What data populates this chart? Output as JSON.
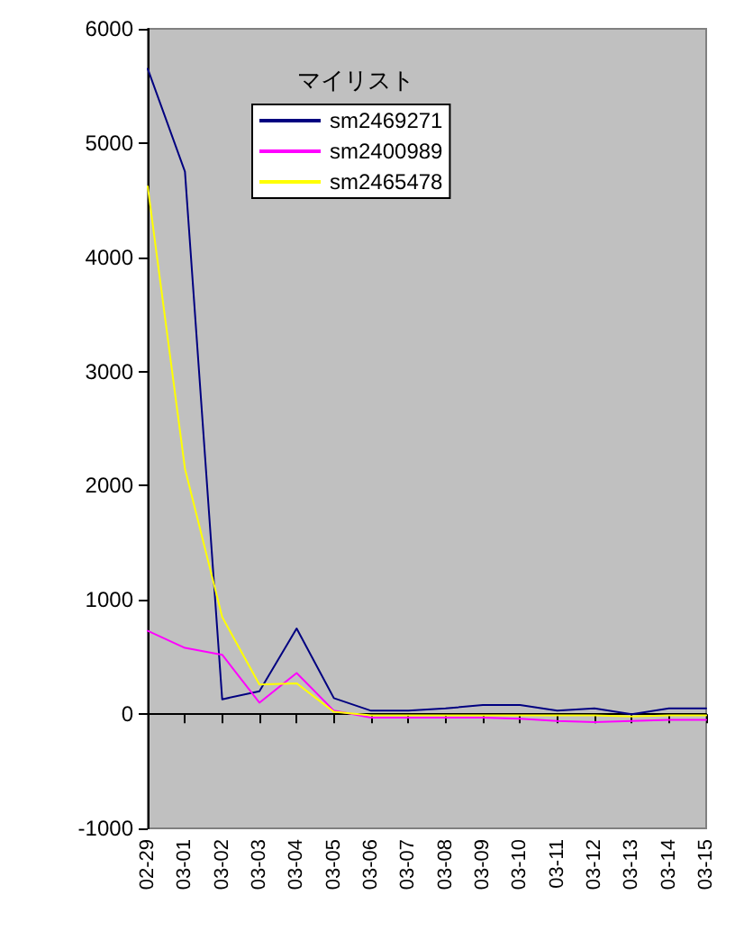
{
  "chart_data": {
    "type": "line",
    "legend_title": "マイリスト",
    "categories": [
      "02-29",
      "03-01",
      "03-02",
      "03-03",
      "03-04",
      "03-05",
      "03-06",
      "03-07",
      "03-08",
      "03-09",
      "03-10",
      "03-11",
      "03-12",
      "03-13",
      "03-14",
      "03-15"
    ],
    "series": [
      {
        "name": "sm2469271",
        "color": "#000080",
        "values": [
          5650,
          4750,
          130,
          200,
          750,
          140,
          30,
          30,
          50,
          80,
          80,
          30,
          50,
          0,
          50,
          50
        ]
      },
      {
        "name": "sm2400989",
        "color": "#ff00ff",
        "values": [
          730,
          580,
          520,
          100,
          360,
          30,
          -30,
          -30,
          -30,
          -30,
          -40,
          -60,
          -70,
          -60,
          -50,
          -50
        ]
      },
      {
        "name": "sm2465478",
        "color": "#ffff00",
        "values": [
          4620,
          2150,
          850,
          260,
          270,
          20,
          -10,
          -10,
          -10,
          -10,
          -10,
          -10,
          -10,
          -20,
          -10,
          -10
        ]
      }
    ],
    "ylim": [
      -1000,
      6000
    ],
    "yticks": [
      -1000,
      0,
      1000,
      2000,
      3000,
      4000,
      5000,
      6000
    ],
    "legend": "top",
    "marker": "none",
    "line_style": "solid"
  }
}
